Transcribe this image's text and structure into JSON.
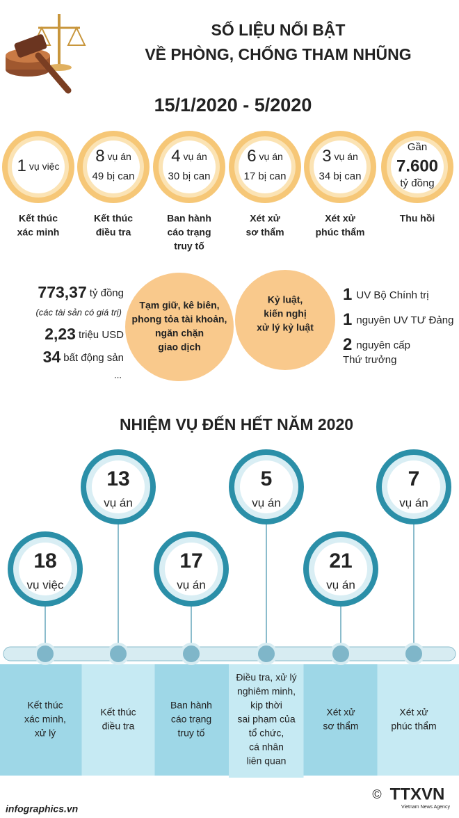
{
  "header": {
    "title_line1": "SỐ LIỆU NỔI BẬT",
    "title_line2": "VỀ PHÒNG, CHỐNG THAM NHŨNG",
    "period": "15/1/2020 - 5/2020"
  },
  "stats": [
    {
      "number": "1",
      "unit": "vụ việc",
      "label": [
        "Kết thúc",
        "xác minh"
      ]
    },
    {
      "number": "8",
      "unit": "vụ án",
      "sub": "49 bị can",
      "label": [
        "Kết thúc",
        "điều tra"
      ]
    },
    {
      "number": "4",
      "unit": "vụ án",
      "sub": "30 bị can",
      "label": [
        "Ban hành",
        "cáo trạng",
        "truy tố"
      ]
    },
    {
      "number": "6",
      "unit": "vụ án",
      "sub": "17 bị can",
      "label": [
        "Xét xử",
        "sơ thẩm"
      ]
    },
    {
      "number": "3",
      "unit": "vụ án",
      "sub": "34 bị can",
      "label": [
        "Xét xử",
        "phúc thẩm"
      ]
    },
    {
      "prefix": "Gần",
      "number": "7.600",
      "unit": "tỷ đồng",
      "label": [
        "Thu hồi"
      ]
    }
  ],
  "assets": {
    "lines": [
      {
        "value": "773,37",
        "unit": "tỷ đồng"
      },
      {
        "value": "2,23",
        "unit": "triệu USD"
      },
      {
        "value": "34",
        "unit": "bất động sản"
      }
    ],
    "note": "(các tài sản có giá trị)",
    "more": "..."
  },
  "measures": [
    [
      "Tạm giữ, kê biên,",
      "phong tỏa tài khoản,",
      "ngăn chặn",
      "giao dịch"
    ],
    [
      "Kỷ luật,",
      "kiến nghị",
      "xử lý kỷ luật"
    ]
  ],
  "discipline": [
    {
      "value": "1",
      "text": [
        "UV Bộ Chính trị"
      ]
    },
    {
      "value": "1",
      "text": [
        "nguyên UV TƯ Đảng"
      ]
    },
    {
      "value": "2",
      "text": [
        "nguyên cấp",
        "Thứ trưởng"
      ]
    }
  ],
  "tasks": {
    "title": "NHIỆM VỤ ĐẾN HẾT NĂM 2020",
    "items": [
      {
        "number": "18",
        "unit": "vụ việc",
        "label": [
          "Kết thúc",
          "xác minh,",
          "xử lý"
        ]
      },
      {
        "number": "13",
        "unit": "vụ án",
        "label": [
          "Kết thúc",
          "điều tra"
        ]
      },
      {
        "number": "17",
        "unit": "vụ án",
        "label": [
          "Ban hành",
          "cáo trạng",
          "truy tố"
        ]
      },
      {
        "number": "5",
        "unit": "vụ án",
        "label": [
          "Điều tra, xử lý",
          "nghiêm minh,",
          "kịp thời",
          "sai phạm của",
          "tổ chức,",
          "cá nhân",
          "liên quan"
        ]
      },
      {
        "number": "21",
        "unit": "vụ án",
        "label": [
          "Xét xử",
          "sơ thẩm"
        ]
      },
      {
        "number": "7",
        "unit": "vụ án",
        "label": [
          "Xét xử",
          "phúc thẩm"
        ]
      }
    ]
  },
  "footer": {
    "site": "infographics.vn",
    "copyright": "©",
    "logo": "TTXVN",
    "agency": "Vietnam News Agency"
  }
}
